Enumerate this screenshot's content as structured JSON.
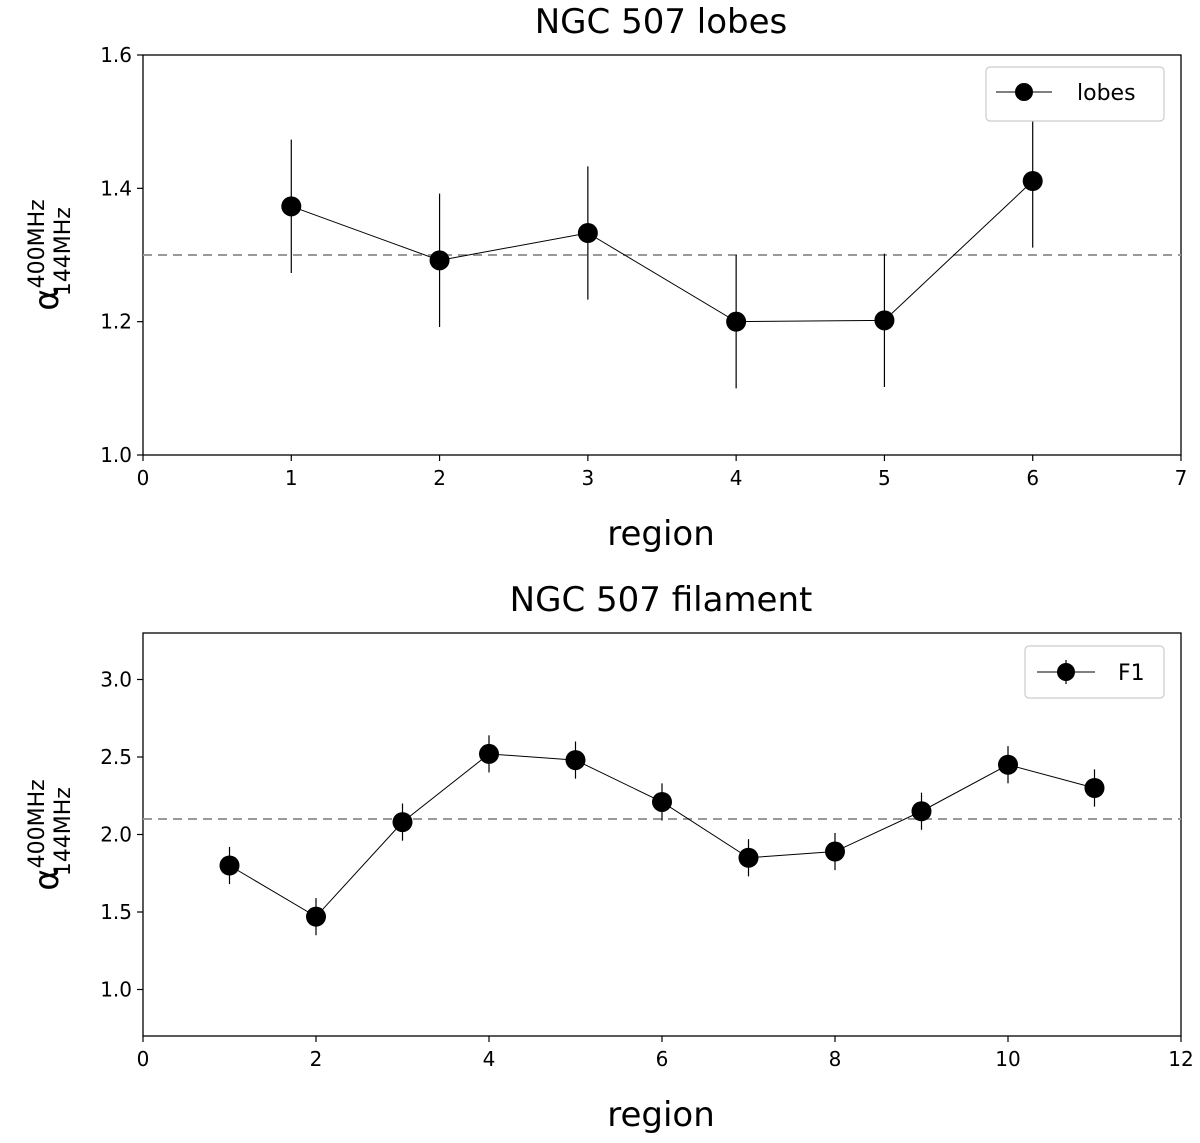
{
  "chart_data": [
    {
      "type": "line",
      "title": "NGC 507 lobes",
      "xlabel": "region",
      "ylabel": {
        "base": "α",
        "sup": "400MHz",
        "sub": "144MHz"
      },
      "xlim": [
        0,
        7
      ],
      "ylim": [
        1.0,
        1.6
      ],
      "xticks": [
        0,
        1,
        2,
        3,
        4,
        5,
        6,
        7
      ],
      "yticks": [
        1.0,
        1.2,
        1.4,
        1.6
      ],
      "xtick_labels": [
        "0",
        "1",
        "2",
        "3",
        "4",
        "5",
        "6",
        "7"
      ],
      "ytick_labels": [
        "1.0",
        "1.2",
        "1.4",
        "1.6"
      ],
      "reference_line": 1.3,
      "legend": {
        "label": "lobes",
        "placement": "top-right"
      },
      "series": [
        {
          "name": "lobes",
          "x": [
            1,
            2,
            3,
            4,
            5,
            6
          ],
          "y": [
            1.373,
            1.292,
            1.333,
            1.2,
            1.202,
            1.411
          ],
          "yerr": [
            0.1,
            0.1,
            0.1,
            0.1,
            0.1,
            0.1
          ]
        }
      ]
    },
    {
      "type": "line",
      "title": "NGC 507 filament",
      "xlabel": "region",
      "ylabel": {
        "base": "α",
        "sup": "400MHz",
        "sub": "144MHz"
      },
      "xlim": [
        0,
        12
      ],
      "ylim": [
        0.7,
        3.3
      ],
      "xticks": [
        0,
        2,
        4,
        6,
        8,
        10,
        12
      ],
      "yticks": [
        1.0,
        1.5,
        2.0,
        2.5,
        3.0
      ],
      "xtick_labels": [
        "0",
        "2",
        "4",
        "6",
        "8",
        "10",
        "12"
      ],
      "ytick_labels": [
        "1.0",
        "1.5",
        "2.0",
        "2.5",
        "3.0"
      ],
      "reference_line": 2.1,
      "legend": {
        "label": "F1",
        "placement": "top-right"
      },
      "series": [
        {
          "name": "F1",
          "x": [
            1,
            2,
            3,
            4,
            5,
            6,
            7,
            8,
            9,
            10,
            11
          ],
          "y": [
            1.8,
            1.47,
            2.08,
            2.52,
            2.48,
            2.21,
            1.85,
            1.89,
            2.15,
            2.45,
            2.3
          ],
          "yerr": [
            0.12,
            0.12,
            0.12,
            0.12,
            0.12,
            0.12,
            0.12,
            0.12,
            0.12,
            0.12,
            0.12
          ]
        }
      ]
    }
  ]
}
